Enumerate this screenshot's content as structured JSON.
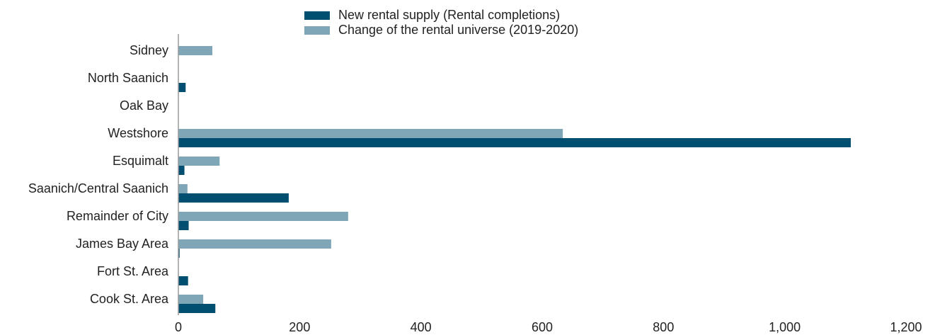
{
  "chart_data": {
    "type": "barh",
    "categories": [
      "Sidney",
      "North Saanich",
      "Oak Bay",
      "Westshore",
      "Esquimalt",
      "Saanich/Central Saanich",
      "Remainder of City",
      "James Bay Area",
      "Fort St. Area",
      "Cook St. Area"
    ],
    "series": [
      {
        "name": "New rental supply (Rental completions)",
        "color": "#004f70",
        "values": [
          0,
          12,
          0,
          1109,
          10,
          182,
          17,
          2,
          16,
          61
        ]
      },
      {
        "name": "Change of the rental universe (2019-2020)",
        "color": "#7fa6b7",
        "values": [
          56,
          0,
          0,
          634,
          68,
          15,
          280,
          252,
          0,
          41
        ]
      }
    ],
    "xlim": [
      0,
      1200
    ],
    "xticks": [
      0,
      200,
      400,
      600,
      800,
      {
        "value": 1000,
        "label": "1,000"
      },
      {
        "value": 1200,
        "label": "1,200"
      }
    ],
    "grid": false
  }
}
